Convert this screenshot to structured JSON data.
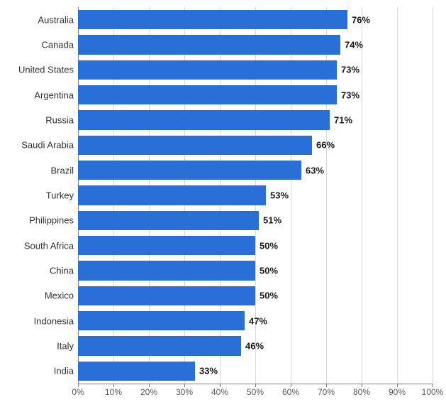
{
  "chart": {
    "type": "bar-horizontal",
    "background_color": "#ffffff",
    "bar_color": "#2a6ed8",
    "grid_color": "#d9d9d9",
    "axis_color": "#808080",
    "label_color": "#333333",
    "value_color": "#1a1a1a",
    "tick_label_color": "#595959",
    "label_fontsize": 13,
    "value_fontsize": 13,
    "tick_fontsize": 12,
    "value_fontweight": "700",
    "label_fontweight": "400",
    "xlim": [
      0,
      100
    ],
    "xtick_step": 10,
    "bar_gap_ratio": 0.22,
    "categories": [
      "Australia",
      "Canada",
      "United States",
      "Argentina",
      "Russia",
      "Saudi Arabia",
      "Brazil",
      "Turkey",
      "Philippines",
      "South Africa",
      "China",
      "Mexico",
      "Indonesia",
      "Italy",
      "India"
    ],
    "values": [
      76,
      74,
      73,
      73,
      71,
      66,
      63,
      53,
      51,
      50,
      50,
      50,
      47,
      46,
      33
    ],
    "value_suffix": "%",
    "tick_suffix": "%"
  }
}
